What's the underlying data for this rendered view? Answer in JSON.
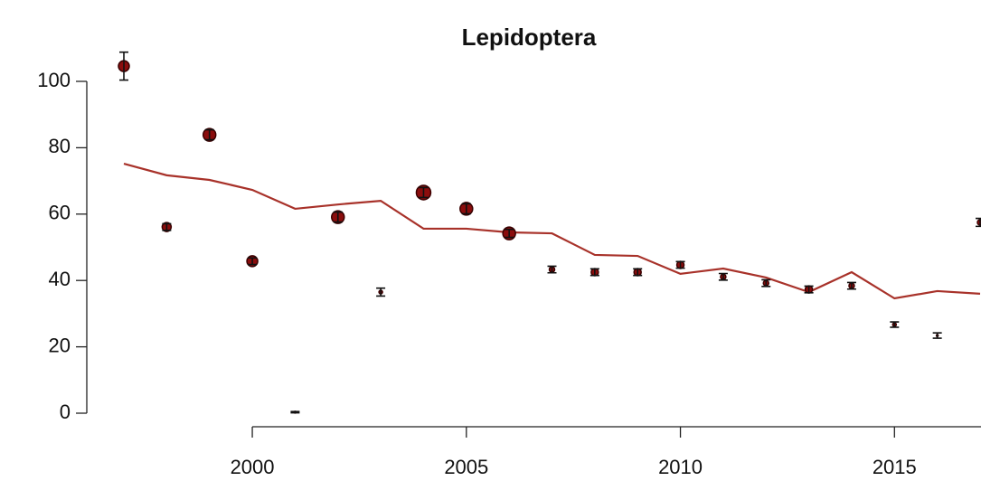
{
  "chart_data": {
    "type": "scatter",
    "title": "Lepidoptera",
    "x": [
      1997,
      1998,
      1999,
      2000,
      2001,
      2002,
      2003,
      2004,
      2005,
      2006,
      2007,
      2008,
      2009,
      2010,
      2011,
      2012,
      2013,
      2014,
      2015,
      2016,
      2017
    ],
    "values": [
      104.6,
      56.1,
      83.9,
      45.8,
      0.3,
      59.1,
      36.5,
      66.5,
      61.6,
      54.2,
      43.3,
      42.5,
      42.5,
      44.7,
      41.1,
      39.2,
      37.3,
      38.4,
      26.7,
      23.4,
      57.5
    ],
    "errors": [
      4.2,
      1,
      1.5,
      1,
      0.2,
      1.5,
      1.2,
      1.5,
      1.5,
      1.2,
      1,
      1,
      1,
      1,
      1,
      1,
      1,
      1,
      0.8,
      0.8,
      1.2
    ],
    "sizes": [
      6,
      5,
      7,
      6,
      1,
      7,
      2,
      8,
      7,
      7,
      3,
      4,
      4,
      4,
      3,
      3,
      4,
      3,
      2,
      1,
      3
    ],
    "color": "#8b0d0d",
    "trend": {
      "color": "#a8322a",
      "values": [
        75.2,
        71.7,
        70.3,
        67.3,
        61.6,
        62.9,
        64.0,
        55.6,
        55.6,
        54.5,
        54.2,
        47.7,
        47.4,
        42.0,
        43.6,
        40.9,
        36.5,
        42.5,
        34.6,
        36.8,
        36.0
      ]
    },
    "xlim": [
      1997,
      2017
    ],
    "ylim": [
      0,
      100
    ],
    "xticks": [
      2000,
      2005,
      2010,
      2015
    ],
    "yticks": [
      0,
      20,
      40,
      60,
      80,
      100
    ]
  }
}
